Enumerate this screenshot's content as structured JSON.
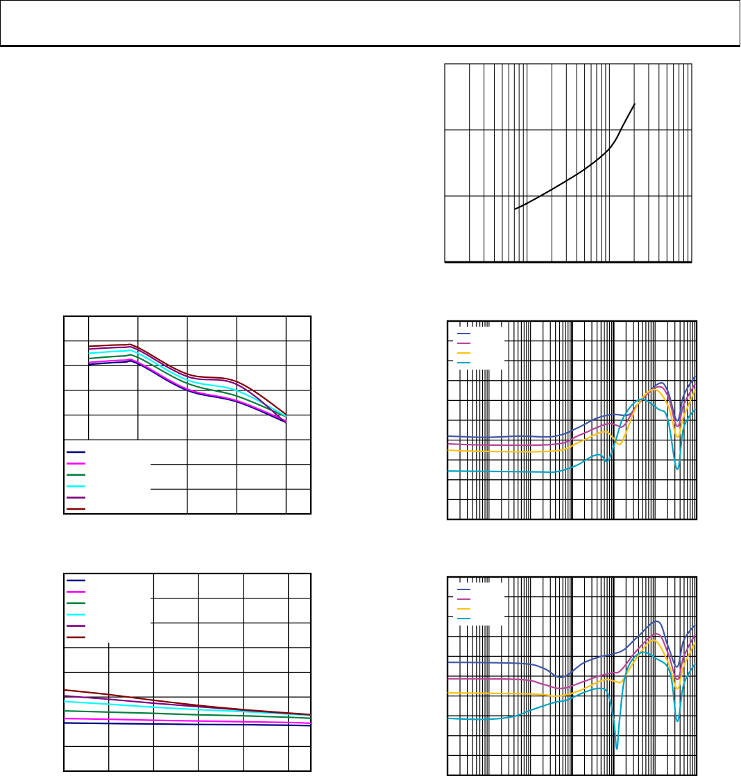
{
  "header": {
    "title": ""
  },
  "chart_data": [
    {
      "id": "top-right",
      "type": "line",
      "xscale": "log",
      "xlim": [
        1,
        1000
      ],
      "ylim": [
        0,
        3
      ],
      "grid": true,
      "series": [
        {
          "color": "#000000",
          "points": [
            [
              7.1,
              0.8
            ],
            [
              10,
              0.89
            ],
            [
              22,
              1.13
            ],
            [
              48,
              1.39
            ],
            [
              85,
              1.63
            ],
            [
              115,
              1.82
            ],
            [
              148,
              2.08
            ],
            [
              204,
              2.4
            ]
          ]
        }
      ]
    },
    {
      "id": "middle-left",
      "type": "line",
      "xscale": "linear",
      "xlim": [
        -0.5,
        4.5
      ],
      "ylim": [
        0,
        8
      ],
      "grid": true,
      "legend": "bottom-left",
      "series": [
        {
          "color": "#000080",
          "points": [
            [
              0,
              6.05
            ],
            [
              0.7,
              6.14
            ],
            [
              1,
              6.08
            ],
            [
              2,
              5.0
            ],
            [
              3,
              4.54
            ],
            [
              4,
              3.7
            ]
          ]
        },
        {
          "color": "#FF00FF",
          "points": [
            [
              0,
              6.13
            ],
            [
              0.7,
              6.22
            ],
            [
              1,
              6.13
            ],
            [
              2,
              5.05
            ],
            [
              3,
              4.58
            ],
            [
              4,
              3.76
            ]
          ]
        },
        {
          "color": "#008040",
          "points": [
            [
              0,
              6.29
            ],
            [
              0.7,
              6.39
            ],
            [
              1,
              6.33
            ],
            [
              2,
              5.28
            ],
            [
              3,
              4.77
            ],
            [
              4,
              3.93
            ]
          ]
        },
        {
          "color": "#00FFFF",
          "points": [
            [
              0,
              6.5
            ],
            [
              0.7,
              6.59
            ],
            [
              1,
              6.5
            ],
            [
              2,
              5.42
            ],
            [
              3,
              4.99
            ],
            [
              4,
              3.95
            ]
          ]
        },
        {
          "color": "#800080",
          "points": [
            [
              0,
              6.67
            ],
            [
              0.7,
              6.74
            ],
            [
              1,
              6.64
            ],
            [
              2,
              5.56
            ],
            [
              3,
              5.24
            ],
            [
              4,
              3.68
            ]
          ]
        },
        {
          "color": "#800000",
          "points": [
            [
              0,
              6.78
            ],
            [
              0.7,
              6.84
            ],
            [
              1,
              6.73
            ],
            [
              2,
              5.66
            ],
            [
              3,
              5.35
            ],
            [
              4,
              4.03
            ]
          ]
        }
      ]
    },
    {
      "id": "bottom-left",
      "type": "line",
      "xscale": "linear",
      "xlim": [
        0,
        5.5
      ],
      "ylim": [
        0,
        8
      ],
      "grid": true,
      "legend": "top-left",
      "series": [
        {
          "color": "#000080",
          "points": [
            [
              0,
              1.95
            ],
            [
              1,
              1.93
            ],
            [
              2,
              1.91
            ],
            [
              3,
              1.89
            ],
            [
              4,
              1.88
            ],
            [
              5,
              1.86
            ],
            [
              5.5,
              1.84
            ]
          ]
        },
        {
          "color": "#FF00FF",
          "points": [
            [
              0,
              2.13
            ],
            [
              1,
              2.1
            ],
            [
              2,
              2.06
            ],
            [
              3,
              2.03
            ],
            [
              4,
              2.0
            ],
            [
              5,
              1.97
            ],
            [
              5.5,
              1.94
            ]
          ]
        },
        {
          "color": "#008040",
          "points": [
            [
              0,
              2.44
            ],
            [
              1,
              2.39
            ],
            [
              2,
              2.34
            ],
            [
              3,
              2.28
            ],
            [
              4,
              2.24
            ],
            [
              5,
              2.18
            ],
            [
              5.5,
              2.14
            ]
          ]
        },
        {
          "color": "#00FFFF",
          "points": [
            [
              0,
              2.82
            ],
            [
              1,
              2.71
            ],
            [
              2,
              2.59
            ],
            [
              3,
              2.49
            ],
            [
              4,
              2.41
            ],
            [
              5,
              2.31
            ],
            [
              5.5,
              2.26
            ]
          ]
        },
        {
          "color": "#800080",
          "points": [
            [
              0,
              3.05
            ],
            [
              1,
              2.91
            ],
            [
              2,
              2.75
            ],
            [
              3,
              2.61
            ],
            [
              4,
              2.47
            ],
            [
              5,
              2.34
            ],
            [
              5.5,
              2.28
            ]
          ]
        },
        {
          "color": "#800000",
          "points": [
            [
              0,
              3.29
            ],
            [
              1,
              3.1
            ],
            [
              2,
              2.87
            ],
            [
              3,
              2.66
            ],
            [
              4,
              2.49
            ],
            [
              5,
              2.35
            ],
            [
              5.5,
              2.29
            ]
          ]
        }
      ]
    },
    {
      "id": "middle-right",
      "type": "line",
      "xscale": "log",
      "xlim": [
        1,
        1000000
      ],
      "ylim": [
        0,
        10
      ],
      "grid": true,
      "legend": "top-left",
      "series": [
        {
          "color": "#3F57A6",
          "points": [
            [
              1,
              4.2
            ],
            [
              8.3,
              4.14
            ],
            [
              56,
              4.2
            ],
            [
              380,
              4.19
            ],
            [
              1400,
              4.63
            ],
            [
              3800,
              5.09
            ],
            [
              9300,
              5.29
            ],
            [
              23000,
              5.27
            ],
            [
              38000,
              5.79
            ],
            [
              120000,
              6.84
            ],
            [
              200000,
              6.49
            ],
            [
              340000,
              4.98
            ],
            [
              490000,
              6.26
            ],
            [
              930000,
              7.25
            ]
          ]
        },
        {
          "color": "#B8449A",
          "points": [
            [
              1,
              3.81
            ],
            [
              8.3,
              3.75
            ],
            [
              380,
              3.79
            ],
            [
              1400,
              4.22
            ],
            [
              6500,
              4.8
            ],
            [
              12000,
              4.74
            ],
            [
              15000,
              4.65
            ],
            [
              20000,
              4.86
            ],
            [
              38000,
              5.79
            ],
            [
              110000,
              6.67
            ],
            [
              200000,
              6.26
            ],
            [
              340000,
              4.69
            ],
            [
              490000,
              5.79
            ],
            [
              930000,
              6.86
            ]
          ]
        },
        {
          "color": "#FFC20E",
          "points": [
            [
              1,
              3.49
            ],
            [
              8.3,
              3.43
            ],
            [
              380,
              3.45
            ],
            [
              1400,
              3.87
            ],
            [
              5600,
              4.42
            ],
            [
              9300,
              4.16
            ],
            [
              14000,
              3.78
            ],
            [
              20000,
              4.39
            ],
            [
              38000,
              5.79
            ],
            [
              93000,
              6.55
            ],
            [
              200000,
              5.79
            ],
            [
              340000,
              4.16
            ],
            [
              490000,
              5.21
            ],
            [
              930000,
              6.55
            ]
          ]
        },
        {
          "color": "#00A3C4",
          "points": [
            [
              1,
              2.44
            ],
            [
              30,
              2.41
            ],
            [
              200,
              2.39
            ],
            [
              380,
              2.39
            ],
            [
              720,
              2.53
            ],
            [
              1400,
              2.76
            ],
            [
              3000,
              3.17
            ],
            [
              4900,
              3.25
            ],
            [
              7200,
              2.94
            ],
            [
              11000,
              3.93
            ],
            [
              18000,
              5.21
            ],
            [
              44000,
              6.05
            ],
            [
              120000,
              5.56
            ],
            [
              200000,
              5.09
            ],
            [
              340000,
              2.53
            ],
            [
              490000,
              4.63
            ],
            [
              930000,
              5.58
            ]
          ]
        }
      ]
    },
    {
      "id": "bottom-right",
      "type": "line",
      "xscale": "log",
      "xlim": [
        1,
        1000000
      ],
      "ylim": [
        0,
        10
      ],
      "grid": true,
      "legend": "top-left",
      "series": [
        {
          "color": "#3F57A6",
          "points": [
            [
              1,
              5.7
            ],
            [
              56,
              5.64
            ],
            [
              200,
              5.41
            ],
            [
              560,
              4.94
            ],
            [
              1800,
              5.64
            ],
            [
              4400,
              5.96
            ],
            [
              9300,
              6.11
            ],
            [
              18000,
              6.34
            ],
            [
              38000,
              6.98
            ],
            [
              115000,
              7.76
            ],
            [
              200000,
              6.57
            ],
            [
              340000,
              5.47
            ],
            [
              490000,
              6.81
            ],
            [
              930000,
              7.6
            ]
          ]
        },
        {
          "color": "#B8449A",
          "points": [
            [
              1,
              4.87
            ],
            [
              56,
              4.83
            ],
            [
              200,
              4.59
            ],
            [
              560,
              4.38
            ],
            [
              1800,
              4.71
            ],
            [
              4400,
              5.0
            ],
            [
              9300,
              5.17
            ],
            [
              15000,
              5.29
            ],
            [
              38000,
              6.34
            ],
            [
              110000,
              7.13
            ],
            [
              200000,
              6.22
            ],
            [
              340000,
              4.83
            ],
            [
              490000,
              5.99
            ],
            [
              930000,
              7.13
            ]
          ]
        },
        {
          "color": "#FFC20E",
          "points": [
            [
              1,
              4.16
            ],
            [
              110,
              4.1
            ],
            [
              440,
              3.99
            ],
            [
              1400,
              4.24
            ],
            [
              5600,
              4.8
            ],
            [
              11000,
              4.73
            ],
            [
              15000,
              4.69
            ],
            [
              20000,
              5.06
            ],
            [
              38000,
              5.99
            ],
            [
              93000,
              6.81
            ],
            [
              200000,
              5.76
            ],
            [
              340000,
              4.36
            ],
            [
              490000,
              5.52
            ],
            [
              930000,
              6.71
            ]
          ]
        },
        {
          "color": "#00A3C4",
          "points": [
            [
              1,
              2.87
            ],
            [
              8.3,
              2.82
            ],
            [
              38,
              2.96
            ],
            [
              110,
              3.31
            ],
            [
              380,
              3.68
            ],
            [
              720,
              3.78
            ],
            [
              2000,
              4.19
            ],
            [
              4600,
              4.38
            ],
            [
              7200,
              4.13
            ],
            [
              10000,
              2.84
            ],
            [
              12000,
              1.33
            ],
            [
              14000,
              2.84
            ],
            [
              20000,
              5.17
            ],
            [
              44000,
              6.17
            ],
            [
              110000,
              5.87
            ],
            [
              230000,
              5.17
            ],
            [
              340000,
              2.73
            ],
            [
              490000,
              4.59
            ],
            [
              930000,
              5.64
            ]
          ]
        }
      ]
    }
  ]
}
